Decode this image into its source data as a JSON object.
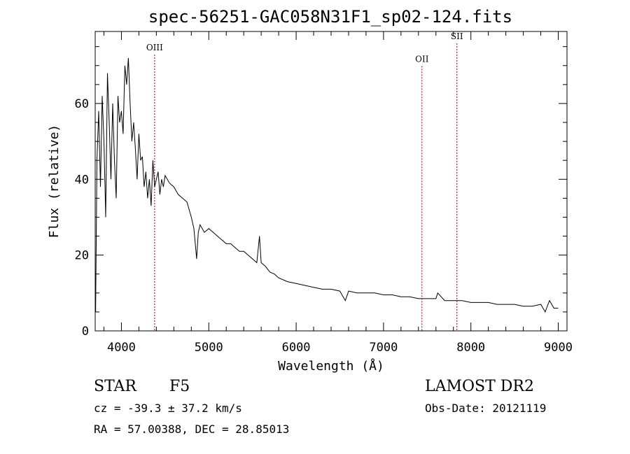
{
  "chart_data": {
    "type": "line",
    "title": "spec-56251-GAC058N31F1_sp02-124.fits",
    "xlabel": "Wavelength (Å)",
    "ylabel": "Flux (relative)",
    "xlim": [
      3700,
      9100
    ],
    "ylim": [
      0,
      79
    ],
    "x_ticks": [
      4000,
      5000,
      6000,
      7000,
      8000,
      9000
    ],
    "y_ticks": [
      0,
      20,
      40,
      60
    ],
    "grid": false,
    "line_color": "#000000",
    "marker_color": "#8b0000",
    "series": [
      {
        "x": [
          3705,
          3720,
          3740,
          3760,
          3780,
          3800,
          3820,
          3840,
          3860,
          3880,
          3900,
          3920,
          3940,
          3960,
          3980,
          4000,
          4020,
          4040,
          4060,
          4080,
          4100,
          4120,
          4140,
          4160,
          4180,
          4200,
          4220,
          4240,
          4260,
          4280,
          4300,
          4320,
          4340,
          4360,
          4380,
          4400,
          4420,
          4440,
          4460,
          4480,
          4500,
          4550,
          4600,
          4650,
          4700,
          4750,
          4800,
          4830,
          4861,
          4880,
          4900,
          4950,
          5000,
          5050,
          5100,
          5150,
          5200,
          5250,
          5300,
          5350,
          5400,
          5450,
          5500,
          5550,
          5580,
          5600,
          5650,
          5700,
          5750,
          5800,
          5900,
          6000,
          6100,
          6200,
          6300,
          6400,
          6500,
          6563,
          6600,
          6700,
          6800,
          6900,
          7000,
          7100,
          7200,
          7300,
          7400,
          7500,
          7600,
          7620,
          7700,
          7800,
          7900,
          8000,
          8100,
          8200,
          8300,
          8400,
          8500,
          8600,
          8700,
          8800,
          8850,
          8900,
          8950,
          9000
        ],
        "values": [
          5,
          45,
          58,
          38,
          62,
          50,
          30,
          68,
          55,
          40,
          60,
          45,
          35,
          62,
          55,
          58,
          52,
          70,
          65,
          72,
          60,
          50,
          55,
          48,
          40,
          52,
          45,
          46,
          38,
          42,
          35,
          40,
          33,
          45,
          38,
          40,
          42,
          36,
          40,
          38,
          41,
          39,
          38,
          36,
          35,
          34,
          30,
          27,
          19,
          26,
          28,
          26,
          27,
          26,
          25,
          24,
          23,
          23,
          22,
          21,
          21,
          20,
          19,
          18,
          25,
          18,
          17,
          15.5,
          15,
          14,
          13,
          12.5,
          12,
          11.5,
          11,
          11,
          10.5,
          8,
          10.5,
          10,
          10,
          10,
          9.5,
          9.5,
          9,
          9,
          8.5,
          8.5,
          8.5,
          10,
          8,
          8,
          8,
          7.5,
          7.5,
          7.5,
          7,
          7,
          7,
          6.5,
          6.5,
          7,
          5,
          8,
          6,
          6
        ]
      }
    ],
    "lines": [
      {
        "label": "OIII",
        "x": 4380,
        "label_y": 74
      },
      {
        "label": "OII",
        "x": 7440,
        "label_y": 71
      },
      {
        "label": "SII",
        "x": 7840,
        "label_y": 77
      }
    ]
  },
  "info": {
    "object_class": "STAR",
    "subclass": "F5",
    "survey": "LAMOST DR2",
    "redshift": "cz = -39.3 ± 37.2 km/s",
    "obs_date": "Obs-Date: 20121119",
    "coords": "RA =  57.00388, DEC =  28.85013"
  }
}
